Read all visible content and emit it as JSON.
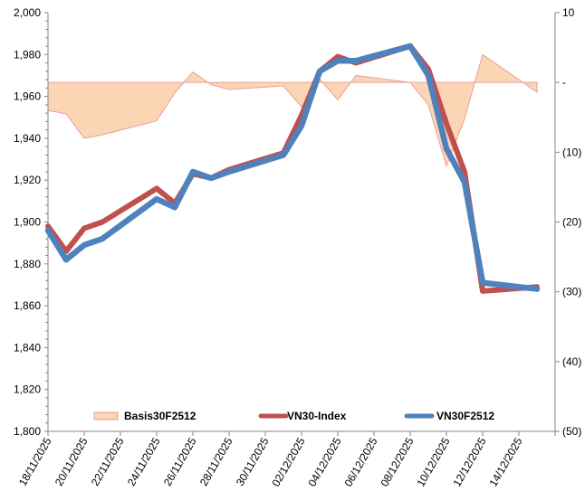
{
  "chart_data": {
    "type": "line",
    "title": "",
    "xlabel": "",
    "ylabel": "",
    "y2label": "",
    "ylim": [
      1800,
      2000
    ],
    "y2lim": [
      -50,
      10
    ],
    "yticks": [
      "1,800",
      "1,820",
      "1,840",
      "1,860",
      "1,880",
      "1,900",
      "1,920",
      "1,940",
      "1,960",
      "1,980",
      "2,000"
    ],
    "y2ticks": [
      "(50)",
      "(40)",
      "(30)",
      "(20)",
      "(10)",
      "-",
      "10"
    ],
    "xticks": [
      "18/11/2025",
      "20/11/2025",
      "22/11/2025",
      "24/11/2025",
      "26/11/2025",
      "28/11/2025",
      "30/11/2025",
      "02/12/2025",
      "04/12/2025",
      "06/12/2025",
      "08/12/2025",
      "10/12/2025",
      "12/12/2025",
      "14/12/2025"
    ],
    "x": [
      "18/11/2025",
      "19/11/2025",
      "20/11/2025",
      "21/11/2025",
      "24/11/2025",
      "25/11/2025",
      "26/11/2025",
      "27/11/2025",
      "28/11/2025",
      "01/12/2025",
      "02/12/2025",
      "03/12/2025",
      "04/12/2025",
      "05/12/2025",
      "08/12/2025",
      "09/12/2025",
      "10/12/2025",
      "11/12/2025",
      "12/12/2025",
      "15/12/2025"
    ],
    "x_day_offsets": [
      0,
      1,
      2,
      3,
      6,
      7,
      8,
      9,
      10,
      13,
      14,
      15,
      16,
      17,
      20,
      21,
      22,
      23,
      24,
      27
    ],
    "series": [
      {
        "name": "Basis30F2512",
        "axis": "right",
        "kind": "area",
        "color": "#FCD5B5",
        "line_color": "#E6A09A",
        "values": [
          -4.0,
          -4.5,
          -8.0,
          -7.5,
          -5.5,
          -1.5,
          1.5,
          -0.3,
          -1.0,
          -0.5,
          -3.5,
          0.5,
          -2.5,
          1.0,
          0.0,
          -3.2,
          -12.0,
          -5.2,
          4.0,
          -1.4
        ]
      },
      {
        "name": "VN30-Index",
        "axis": "left",
        "kind": "line",
        "color": "#C0504D",
        "values": [
          1898,
          1886,
          1897,
          1900,
          1916,
          1909,
          1923,
          1921,
          1925,
          1933,
          1951,
          1972,
          1979,
          1976,
          1984,
          1973,
          1947,
          1924,
          1867,
          1869
        ]
      },
      {
        "name": "VN30F2512",
        "axis": "left",
        "kind": "line",
        "color": "#4F81BD",
        "values": [
          1896,
          1882,
          1889,
          1892,
          1911,
          1907,
          1924,
          1921,
          1924,
          1932,
          1946,
          1972,
          1977,
          1977,
          1984,
          1970,
          1935,
          1919,
          1871,
          1868
        ]
      }
    ],
    "legend": {
      "position": "bottom-inside",
      "items": [
        {
          "label": "Basis30F2512",
          "kind": "area"
        },
        {
          "label": "VN30-Index",
          "kind": "line"
        },
        {
          "label": "VN30F2512",
          "kind": "line"
        }
      ]
    },
    "grid": false
  }
}
